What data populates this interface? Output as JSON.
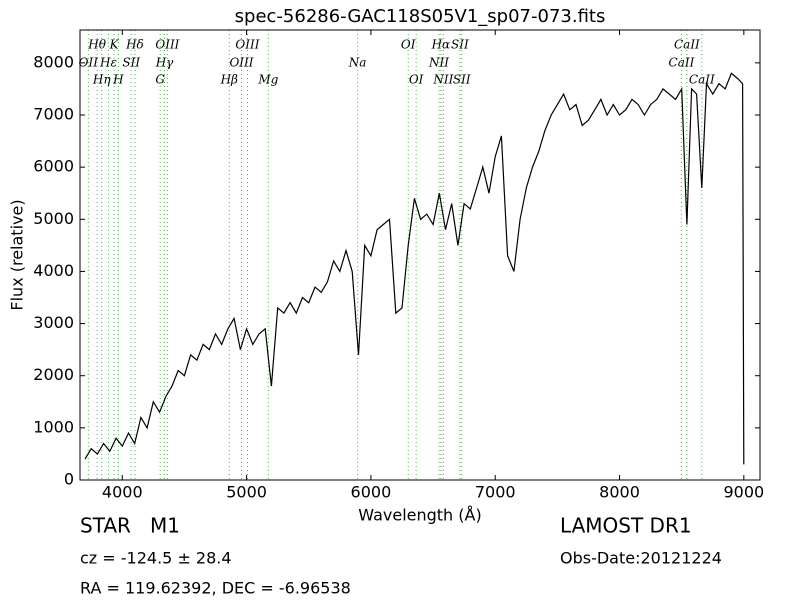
{
  "chart_data": {
    "type": "line",
    "title": "spec-56286-GAC118S05V1_sp07-073.fits",
    "x_label": "Wavelength (Å)",
    "y_label": "Flux (relative)",
    "xlim": [
      3660,
      9130
    ],
    "ylim": [
      0,
      8630
    ],
    "xticks": [
      4000,
      5000,
      6000,
      7000,
      8000,
      9000
    ],
    "yticks": [
      0,
      1000,
      2000,
      3000,
      4000,
      5000,
      6000,
      7000,
      8000
    ],
    "color": "#000000",
    "line_color": "#55aa55",
    "x": [
      3700,
      3750,
      3800,
      3850,
      3900,
      3950,
      4000,
      4050,
      4100,
      4150,
      4200,
      4250,
      4300,
      4350,
      4400,
      4450,
      4500,
      4550,
      4600,
      4650,
      4700,
      4750,
      4800,
      4850,
      4900,
      4950,
      5000,
      5050,
      5100,
      5150,
      5200,
      5250,
      5300,
      5350,
      5400,
      5450,
      5500,
      5550,
      5600,
      5650,
      5700,
      5750,
      5800,
      5850,
      5900,
      5950,
      6000,
      6050,
      6100,
      6150,
      6200,
      6250,
      6300,
      6350,
      6400,
      6450,
      6500,
      6550,
      6600,
      6650,
      6700,
      6750,
      6800,
      6850,
      6900,
      6950,
      7000,
      7050,
      7100,
      7150,
      7200,
      7250,
      7300,
      7350,
      7400,
      7450,
      7500,
      7550,
      7600,
      7650,
      7700,
      7750,
      7800,
      7850,
      7900,
      7950,
      8000,
      8050,
      8100,
      8150,
      8200,
      8250,
      8300,
      8350,
      8400,
      8450,
      8500,
      8542,
      8580,
      8620,
      8662,
      8700,
      8750,
      8800,
      8850,
      8900,
      8950,
      8990,
      9000
    ],
    "values": [
      400,
      600,
      500,
      700,
      550,
      800,
      650,
      900,
      700,
      1200,
      1000,
      1500,
      1300,
      1600,
      1800,
      2100,
      2000,
      2400,
      2300,
      2600,
      2500,
      2800,
      2600,
      2900,
      3100,
      2500,
      2900,
      2600,
      2800,
      2900,
      1800,
      3300,
      3200,
      3400,
      3200,
      3500,
      3400,
      3700,
      3600,
      3800,
      4200,
      4000,
      4400,
      4000,
      2400,
      4500,
      4300,
      4800,
      4900,
      5000,
      3200,
      3300,
      4500,
      5400,
      5000,
      5100,
      4900,
      5500,
      4800,
      5300,
      4500,
      5300,
      5200,
      5600,
      6000,
      5500,
      6200,
      6600,
      4300,
      4000,
      5000,
      5600,
      6000,
      6300,
      6700,
      7000,
      7200,
      7400,
      7100,
      7200,
      6800,
      6900,
      7100,
      7300,
      7000,
      7200,
      7000,
      7100,
      7300,
      7200,
      7000,
      7200,
      7300,
      7500,
      7400,
      7300,
      7500,
      4900,
      7500,
      7400,
      5600,
      7600,
      7400,
      7600,
      7500,
      7800,
      7700,
      7600,
      300
    ],
    "line_labels": [
      [
        {
          "text": "Hθ",
          "x": 3798
        },
        {
          "text": "K",
          "x": 3934
        },
        {
          "text": "Hδ",
          "x": 4102
        },
        {
          "text": "OIII",
          "x": 4363
        },
        {
          "text": "OIII",
          "x": 5007
        },
        {
          "text": "OI",
          "x": 6300
        },
        {
          "text": "Hα",
          "x": 6563
        },
        {
          "text": "SII",
          "x": 6716
        },
        {
          "text": "CaII",
          "x": 8542
        }
      ],
      [
        {
          "text": "OII",
          "x": 3727
        },
        {
          "text": "Hε",
          "x": 3889
        },
        {
          "text": "SII",
          "x": 4072
        },
        {
          "text": "Hγ",
          "x": 4340
        },
        {
          "text": "OIII",
          "x": 4959
        },
        {
          "text": "Na",
          "x": 5893
        },
        {
          "text": "NII",
          "x": 6548
        },
        {
          "text": "CaII",
          "x": 8498
        }
      ],
      [
        {
          "text": "Hη",
          "x": 3835
        },
        {
          "text": "H",
          "x": 3969
        },
        {
          "text": "G",
          "x": 4305
        },
        {
          "text": "Hβ",
          "x": 4861
        },
        {
          "text": "Mg",
          "x": 5175
        },
        {
          "text": "OI",
          "x": 6364
        },
        {
          "text": "NII",
          "x": 6583
        },
        {
          "text": "SII",
          "x": 6731
        },
        {
          "text": "CaII",
          "x": 8662
        }
      ]
    ],
    "object_class": "STAR   M1",
    "redshift": "cz = -124.5 ± 28.4",
    "coordinates": "RA = 119.62392, DEC = -6.96538",
    "survey": "LAMOST DR1",
    "obs_date": "Obs-Date:20121224"
  }
}
